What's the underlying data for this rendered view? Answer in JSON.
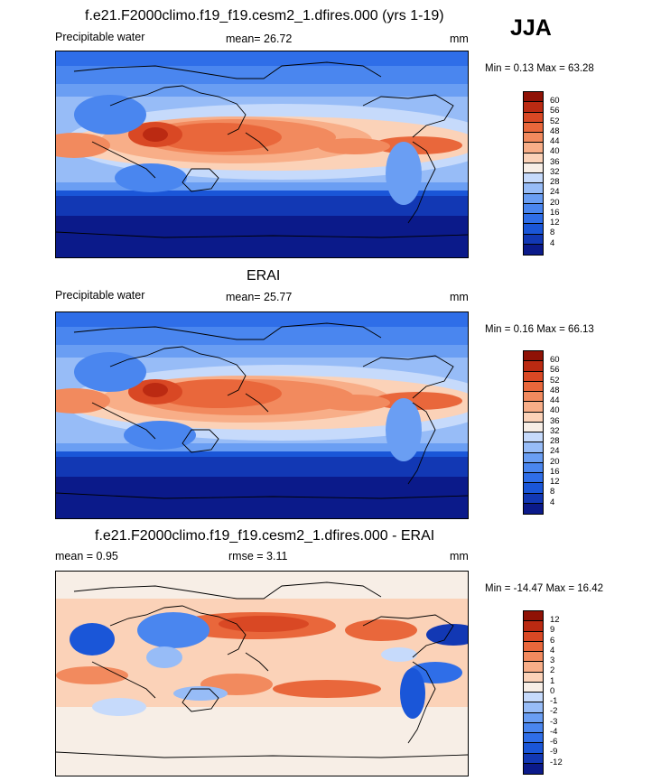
{
  "season": "JJA",
  "panels": [
    {
      "title": "f.e21.F2000climo.f19_f19.cesm2_1.dfires.000 (yrs 1-19)",
      "left_label": "Precipitable water",
      "center_label": "mean=  26.72",
      "units": "mm",
      "min_label": "Min =   0.13 Max =  63.28",
      "colors": [
        "#0b1a8a",
        "#1238b4",
        "#1a56d8",
        "#2f6ee8",
        "#4a86ef",
        "#6a9ef3",
        "#97bcf7",
        "#c6dafb",
        "#f7eee6",
        "#fbd2b8",
        "#f8ae88",
        "#f28a5e",
        "#e9673b",
        "#d94824",
        "#bb2a12",
        "#8f1206"
      ],
      "ticks": [
        "60",
        "56",
        "52",
        "48",
        "44",
        "40",
        "36",
        "32",
        "28",
        "24",
        "20",
        "16",
        "12",
        "8",
        "4"
      ]
    },
    {
      "title": "ERAI",
      "left_label": "Precipitable water",
      "center_label": "mean=  25.77",
      "units": "mm",
      "min_label": "Min =   0.16 Max =  66.13",
      "colors": [
        "#0b1a8a",
        "#1238b4",
        "#1a56d8",
        "#2f6ee8",
        "#4a86ef",
        "#6a9ef3",
        "#97bcf7",
        "#c6dafb",
        "#f7eee6",
        "#fbd2b8",
        "#f8ae88",
        "#f28a5e",
        "#e9673b",
        "#d94824",
        "#bb2a12",
        "#8f1206"
      ],
      "ticks": [
        "60",
        "56",
        "52",
        "48",
        "44",
        "40",
        "36",
        "32",
        "28",
        "24",
        "20",
        "16",
        "12",
        "8",
        "4"
      ]
    },
    {
      "title": "f.e21.F2000climo.f19_f19.cesm2_1.dfires.000 - ERAI",
      "left_label": "mean =   0.95",
      "center_label": "rmse =    3.11",
      "units": "mm",
      "min_label": "Min = -14.47 Max =  16.42",
      "colors": [
        "#0b1a8a",
        "#1238b4",
        "#1a56d8",
        "#2f6ee8",
        "#4a86ef",
        "#6a9ef3",
        "#97bcf7",
        "#c6dafb",
        "#f7eee6",
        "#fbd2b8",
        "#f8ae88",
        "#f28a5e",
        "#e9673b",
        "#d94824",
        "#bb2a12",
        "#8f1206"
      ],
      "ticks": [
        "12",
        "9",
        "6",
        "4",
        "3",
        "2",
        "1",
        "0",
        "-1",
        "-2",
        "-3",
        "-4",
        "-6",
        "-9",
        "-12"
      ]
    }
  ]
}
